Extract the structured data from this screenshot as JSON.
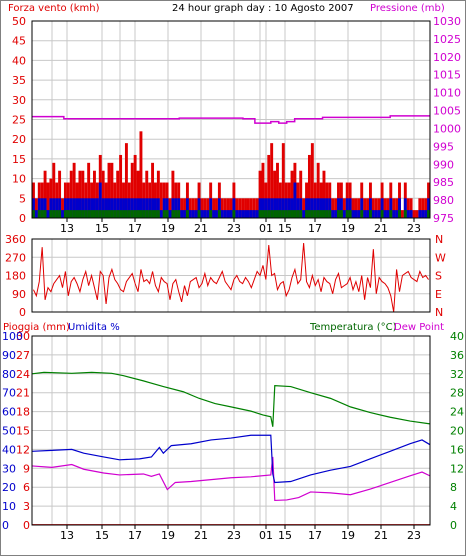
{
  "title": "24 hour graph day : 10 Agosto 2007",
  "colors": {
    "red": "#e00000",
    "blue": "#0000cc",
    "green": "#006600",
    "magenta": "#d000d0",
    "darkgreen": "#008000",
    "grid": "#c8c8c8",
    "frame": "#000000"
  },
  "chart_data": [
    {
      "type": "bar",
      "name": "wind-speed-pressure",
      "left_label": "Forza vento (kmh)",
      "right_label": "Pressione (mb)",
      "left_ticks": [
        "0",
        "5",
        "10",
        "15",
        "20",
        "25",
        "30",
        "35",
        "40",
        "45",
        "50"
      ],
      "right_ticks": [
        "975",
        "980",
        "985",
        "990",
        "995",
        "1000",
        "1005",
        "1010",
        "1015",
        "1020",
        "1025",
        "1030"
      ],
      "ylim_left": [
        0,
        50
      ],
      "ylim_right": [
        975,
        1030
      ],
      "x_ticks": [
        "13",
        "15",
        "17",
        "19",
        "21",
        "23",
        "01",
        "15",
        "17",
        "19",
        "21",
        "23"
      ],
      "series": [
        {
          "color": "red",
          "values": [
            9,
            5,
            9,
            9,
            12,
            9,
            10,
            14,
            9,
            12,
            5,
            9,
            9,
            12,
            14,
            9,
            12,
            12,
            9,
            14,
            9,
            12,
            9,
            16,
            12,
            9,
            14,
            14,
            9,
            12,
            16,
            9,
            19,
            9,
            14,
            16,
            12,
            22,
            9,
            12,
            9,
            14,
            9,
            12,
            9,
            9,
            9,
            5,
            12,
            9,
            9,
            5,
            5,
            9,
            5,
            5,
            5,
            9,
            5,
            5,
            5,
            9,
            5,
            5,
            9,
            5,
            5,
            5,
            5,
            9,
            5,
            5,
            5,
            5,
            5,
            5,
            5,
            5,
            12,
            14,
            9,
            16,
            19,
            12,
            14,
            9,
            19,
            9,
            9,
            12,
            14,
            9,
            12,
            5,
            9,
            16,
            19,
            9,
            14,
            9,
            12,
            9,
            9,
            5,
            5,
            9,
            9,
            5,
            9,
            9,
            5,
            5,
            5,
            9,
            5,
            5,
            9,
            5,
            5,
            5,
            9,
            5,
            5,
            9,
            5,
            5,
            9,
            2,
            9,
            5,
            5,
            2,
            2,
            5,
            5,
            5,
            9
          ]
        },
        {
          "color": "blue",
          "values": [
            5,
            2,
            5,
            5,
            5,
            2,
            5,
            5,
            5,
            5,
            2,
            5,
            5,
            5,
            5,
            5,
            5,
            5,
            5,
            5,
            5,
            5,
            5,
            9,
            5,
            5,
            5,
            5,
            5,
            5,
            5,
            5,
            5,
            5,
            5,
            5,
            5,
            5,
            5,
            5,
            5,
            5,
            5,
            5,
            2,
            5,
            5,
            2,
            5,
            5,
            5,
            2,
            2,
            5,
            2,
            2,
            2,
            5,
            2,
            2,
            2,
            5,
            2,
            2,
            5,
            2,
            2,
            2,
            2,
            5,
            2,
            2,
            2,
            2,
            2,
            2,
            2,
            2,
            5,
            5,
            5,
            5,
            5,
            5,
            5,
            5,
            5,
            5,
            5,
            5,
            9,
            5,
            5,
            2,
            5,
            5,
            5,
            5,
            5,
            5,
            5,
            5,
            5,
            2,
            2,
            5,
            5,
            2,
            5,
            5,
            2,
            2,
            2,
            5,
            2,
            2,
            5,
            2,
            2,
            2,
            5,
            2,
            2,
            5,
            2,
            2,
            5,
            0,
            5,
            2,
            2,
            0,
            0,
            2,
            2,
            2,
            5
          ]
        },
        {
          "color": "green",
          "values": [
            2,
            0,
            2,
            2,
            2,
            0,
            2,
            2,
            2,
            2,
            0,
            2,
            2,
            2,
            2,
            2,
            2,
            2,
            2,
            2,
            2,
            2,
            2,
            2,
            2,
            2,
            2,
            2,
            2,
            2,
            2,
            2,
            2,
            2,
            2,
            2,
            2,
            2,
            2,
            2,
            2,
            2,
            2,
            2,
            0,
            2,
            2,
            0,
            2,
            2,
            2,
            0,
            0,
            2,
            0,
            0,
            0,
            2,
            0,
            0,
            0,
            2,
            0,
            0,
            2,
            0,
            0,
            0,
            0,
            2,
            0,
            0,
            0,
            0,
            0,
            0,
            0,
            0,
            2,
            2,
            2,
            2,
            2,
            2,
            2,
            2,
            2,
            2,
            2,
            2,
            2,
            2,
            2,
            0,
            2,
            2,
            2,
            2,
            2,
            2,
            2,
            2,
            2,
            0,
            0,
            2,
            2,
            0,
            2,
            2,
            0,
            0,
            0,
            2,
            0,
            0,
            2,
            0,
            0,
            0,
            2,
            0,
            0,
            2,
            0,
            0,
            2,
            0,
            2,
            0,
            0,
            0,
            0,
            0,
            0,
            0,
            2
          ]
        },
        {
          "color": "magenta",
          "type": "line",
          "points": [
            [
              0,
              1003.3
            ],
            [
              0.08,
              1003.3
            ],
            [
              0.08,
              1002.7
            ],
            [
              0.37,
              1002.7
            ],
            [
              0.37,
              1002.9
            ],
            [
              0.53,
              1002.9
            ],
            [
              0.53,
              1002.7
            ],
            [
              0.56,
              1002.7
            ],
            [
              0.56,
              1001.5
            ],
            [
              0.6,
              1001.5
            ],
            [
              0.6,
              1001.9
            ],
            [
              0.62,
              1001.9
            ],
            [
              0.62,
              1001.5
            ],
            [
              0.64,
              1001.5
            ],
            [
              0.64,
              1001.9
            ],
            [
              0.66,
              1001.9
            ],
            [
              0.66,
              1002.7
            ],
            [
              0.73,
              1002.7
            ],
            [
              0.73,
              1003.1
            ],
            [
              0.9,
              1003.1
            ],
            [
              0.9,
              1003.5
            ],
            [
              1,
              1003.5
            ]
          ]
        }
      ]
    },
    {
      "type": "line",
      "name": "wind-direction",
      "right_letters": [
        "N",
        "W",
        "S",
        "E",
        "N"
      ],
      "left_ticks": [
        "0",
        "90",
        "180",
        "270",
        "360"
      ],
      "ylim": [
        0,
        360
      ],
      "series": [
        {
          "color": "red",
          "values": [
            110,
            80,
            150,
            320,
            60,
            120,
            100,
            140,
            160,
            180,
            120,
            200,
            80,
            150,
            170,
            140,
            100,
            160,
            200,
            130,
            180,
            120,
            60,
            200,
            180,
            40,
            170,
            210,
            160,
            140,
            110,
            100,
            150,
            170,
            190,
            140,
            100,
            210,
            150,
            160,
            140,
            200,
            130,
            100,
            170,
            150,
            140,
            60,
            140,
            160,
            100,
            50,
            130,
            80,
            150,
            160,
            170,
            120,
            140,
            190,
            130,
            170,
            150,
            140,
            170,
            200,
            150,
            130,
            110,
            160,
            180,
            150,
            140,
            170,
            150,
            120,
            160,
            200,
            180,
            230,
            160,
            330,
            180,
            190,
            110,
            140,
            150,
            80,
            110,
            170,
            210,
            140,
            160,
            340,
            150,
            120,
            180,
            130,
            160,
            100,
            170,
            150,
            140,
            90,
            160,
            190,
            120,
            130,
            140,
            170,
            110,
            150,
            100,
            180,
            60,
            170,
            120,
            310,
            90,
            170,
            150,
            140,
            120,
            80,
            0,
            210,
            100,
            180,
            190,
            200,
            170,
            160,
            150,
            200,
            170,
            180,
            160
          ]
        }
      ]
    },
    {
      "type": "line",
      "name": "rain-humidity-temp",
      "left_label_1": "Pioggia (mm)",
      "left_label_2": "Umidita %",
      "right_label_1": "Temperatura (°C)",
      "right_label_2": "Dew Point",
      "left_ticks_1": [
        "0",
        "3",
        "6",
        "9",
        "12",
        "15",
        "18",
        "21",
        "24",
        "27",
        "30"
      ],
      "left_ticks_2": [
        "0",
        "10",
        "20",
        "30",
        "40",
        "50",
        "60",
        "70",
        "80",
        "90",
        "100"
      ],
      "right_ticks": [
        "0",
        "4",
        "8",
        "12",
        "16",
        "20",
        "24",
        "28",
        "32",
        "36",
        "40"
      ],
      "ylim_right": [
        0,
        40
      ],
      "series": [
        {
          "name": "Temperatura (°C)",
          "color": "darkgreen",
          "points": [
            [
              0,
              32
            ],
            [
              0.03,
              32.3
            ],
            [
              0.1,
              32.1
            ],
            [
              0.15,
              32.3
            ],
            [
              0.2,
              32.1
            ],
            [
              0.23,
              31.6
            ],
            [
              0.28,
              30.5
            ],
            [
              0.33,
              29.3
            ],
            [
              0.38,
              28.2
            ],
            [
              0.42,
              26.8
            ],
            [
              0.46,
              25.7
            ],
            [
              0.5,
              25.0
            ],
            [
              0.55,
              24.1
            ],
            [
              0.58,
              23.3
            ],
            [
              0.6,
              22.9
            ],
            [
              0.605,
              20.8
            ],
            [
              0.61,
              29.5
            ],
            [
              0.65,
              29.3
            ],
            [
              0.7,
              28.0
            ],
            [
              0.75,
              26.8
            ],
            [
              0.8,
              25.0
            ],
            [
              0.85,
              23.8
            ],
            [
              0.9,
              22.8
            ],
            [
              0.95,
              22.0
            ],
            [
              1,
              21.4
            ]
          ]
        },
        {
          "name": "Dew Point",
          "color": "magenta",
          "points": [
            [
              0,
              12.5
            ],
            [
              0.05,
              12.2
            ],
            [
              0.1,
              12.8
            ],
            [
              0.13,
              11.8
            ],
            [
              0.18,
              11.0
            ],
            [
              0.22,
              10.6
            ],
            [
              0.28,
              10.8
            ],
            [
              0.3,
              10.3
            ],
            [
              0.32,
              10.8
            ],
            [
              0.34,
              7.5
            ],
            [
              0.36,
              9.0
            ],
            [
              0.4,
              9.2
            ],
            [
              0.45,
              9.6
            ],
            [
              0.5,
              10.0
            ],
            [
              0.55,
              10.2
            ],
            [
              0.6,
              10.6
            ],
            [
              0.605,
              14.4
            ],
            [
              0.61,
              5.2
            ],
            [
              0.64,
              5.3
            ],
            [
              0.67,
              5.8
            ],
            [
              0.7,
              7.0
            ],
            [
              0.75,
              6.8
            ],
            [
              0.8,
              6.4
            ],
            [
              0.85,
              7.6
            ],
            [
              0.9,
              9.0
            ],
            [
              0.95,
              10.4
            ],
            [
              0.98,
              11.2
            ],
            [
              1,
              10.4
            ]
          ]
        },
        {
          "name": "Umidita %",
          "color": "blue",
          "points": [
            [
              0,
              39
            ],
            [
              0.05,
              39.5
            ],
            [
              0.1,
              40
            ],
            [
              0.13,
              38
            ],
            [
              0.18,
              36
            ],
            [
              0.22,
              34.5
            ],
            [
              0.27,
              35
            ],
            [
              0.3,
              36
            ],
            [
              0.32,
              41
            ],
            [
              0.33,
              38
            ],
            [
              0.35,
              42
            ],
            [
              0.4,
              43
            ],
            [
              0.45,
              45
            ],
            [
              0.5,
              46
            ],
            [
              0.55,
              47.5
            ],
            [
              0.6,
              47.5
            ],
            [
              0.605,
              27
            ],
            [
              0.61,
              22.5
            ],
            [
              0.65,
              23
            ],
            [
              0.7,
              26.5
            ],
            [
              0.75,
              29
            ],
            [
              0.8,
              31
            ],
            [
              0.85,
              35
            ],
            [
              0.9,
              39
            ],
            [
              0.95,
              43
            ],
            [
              0.98,
              45
            ],
            [
              1,
              42.5
            ]
          ]
        },
        {
          "name": "Pioggia (mm)",
          "color": "red",
          "points": [
            [
              0,
              0.05
            ],
            [
              1,
              0.05
            ]
          ]
        }
      ],
      "x_ticks": [
        "13",
        "15",
        "17",
        "19",
        "21",
        "23",
        "01",
        "15",
        "17",
        "19",
        "21",
        "23"
      ]
    }
  ]
}
